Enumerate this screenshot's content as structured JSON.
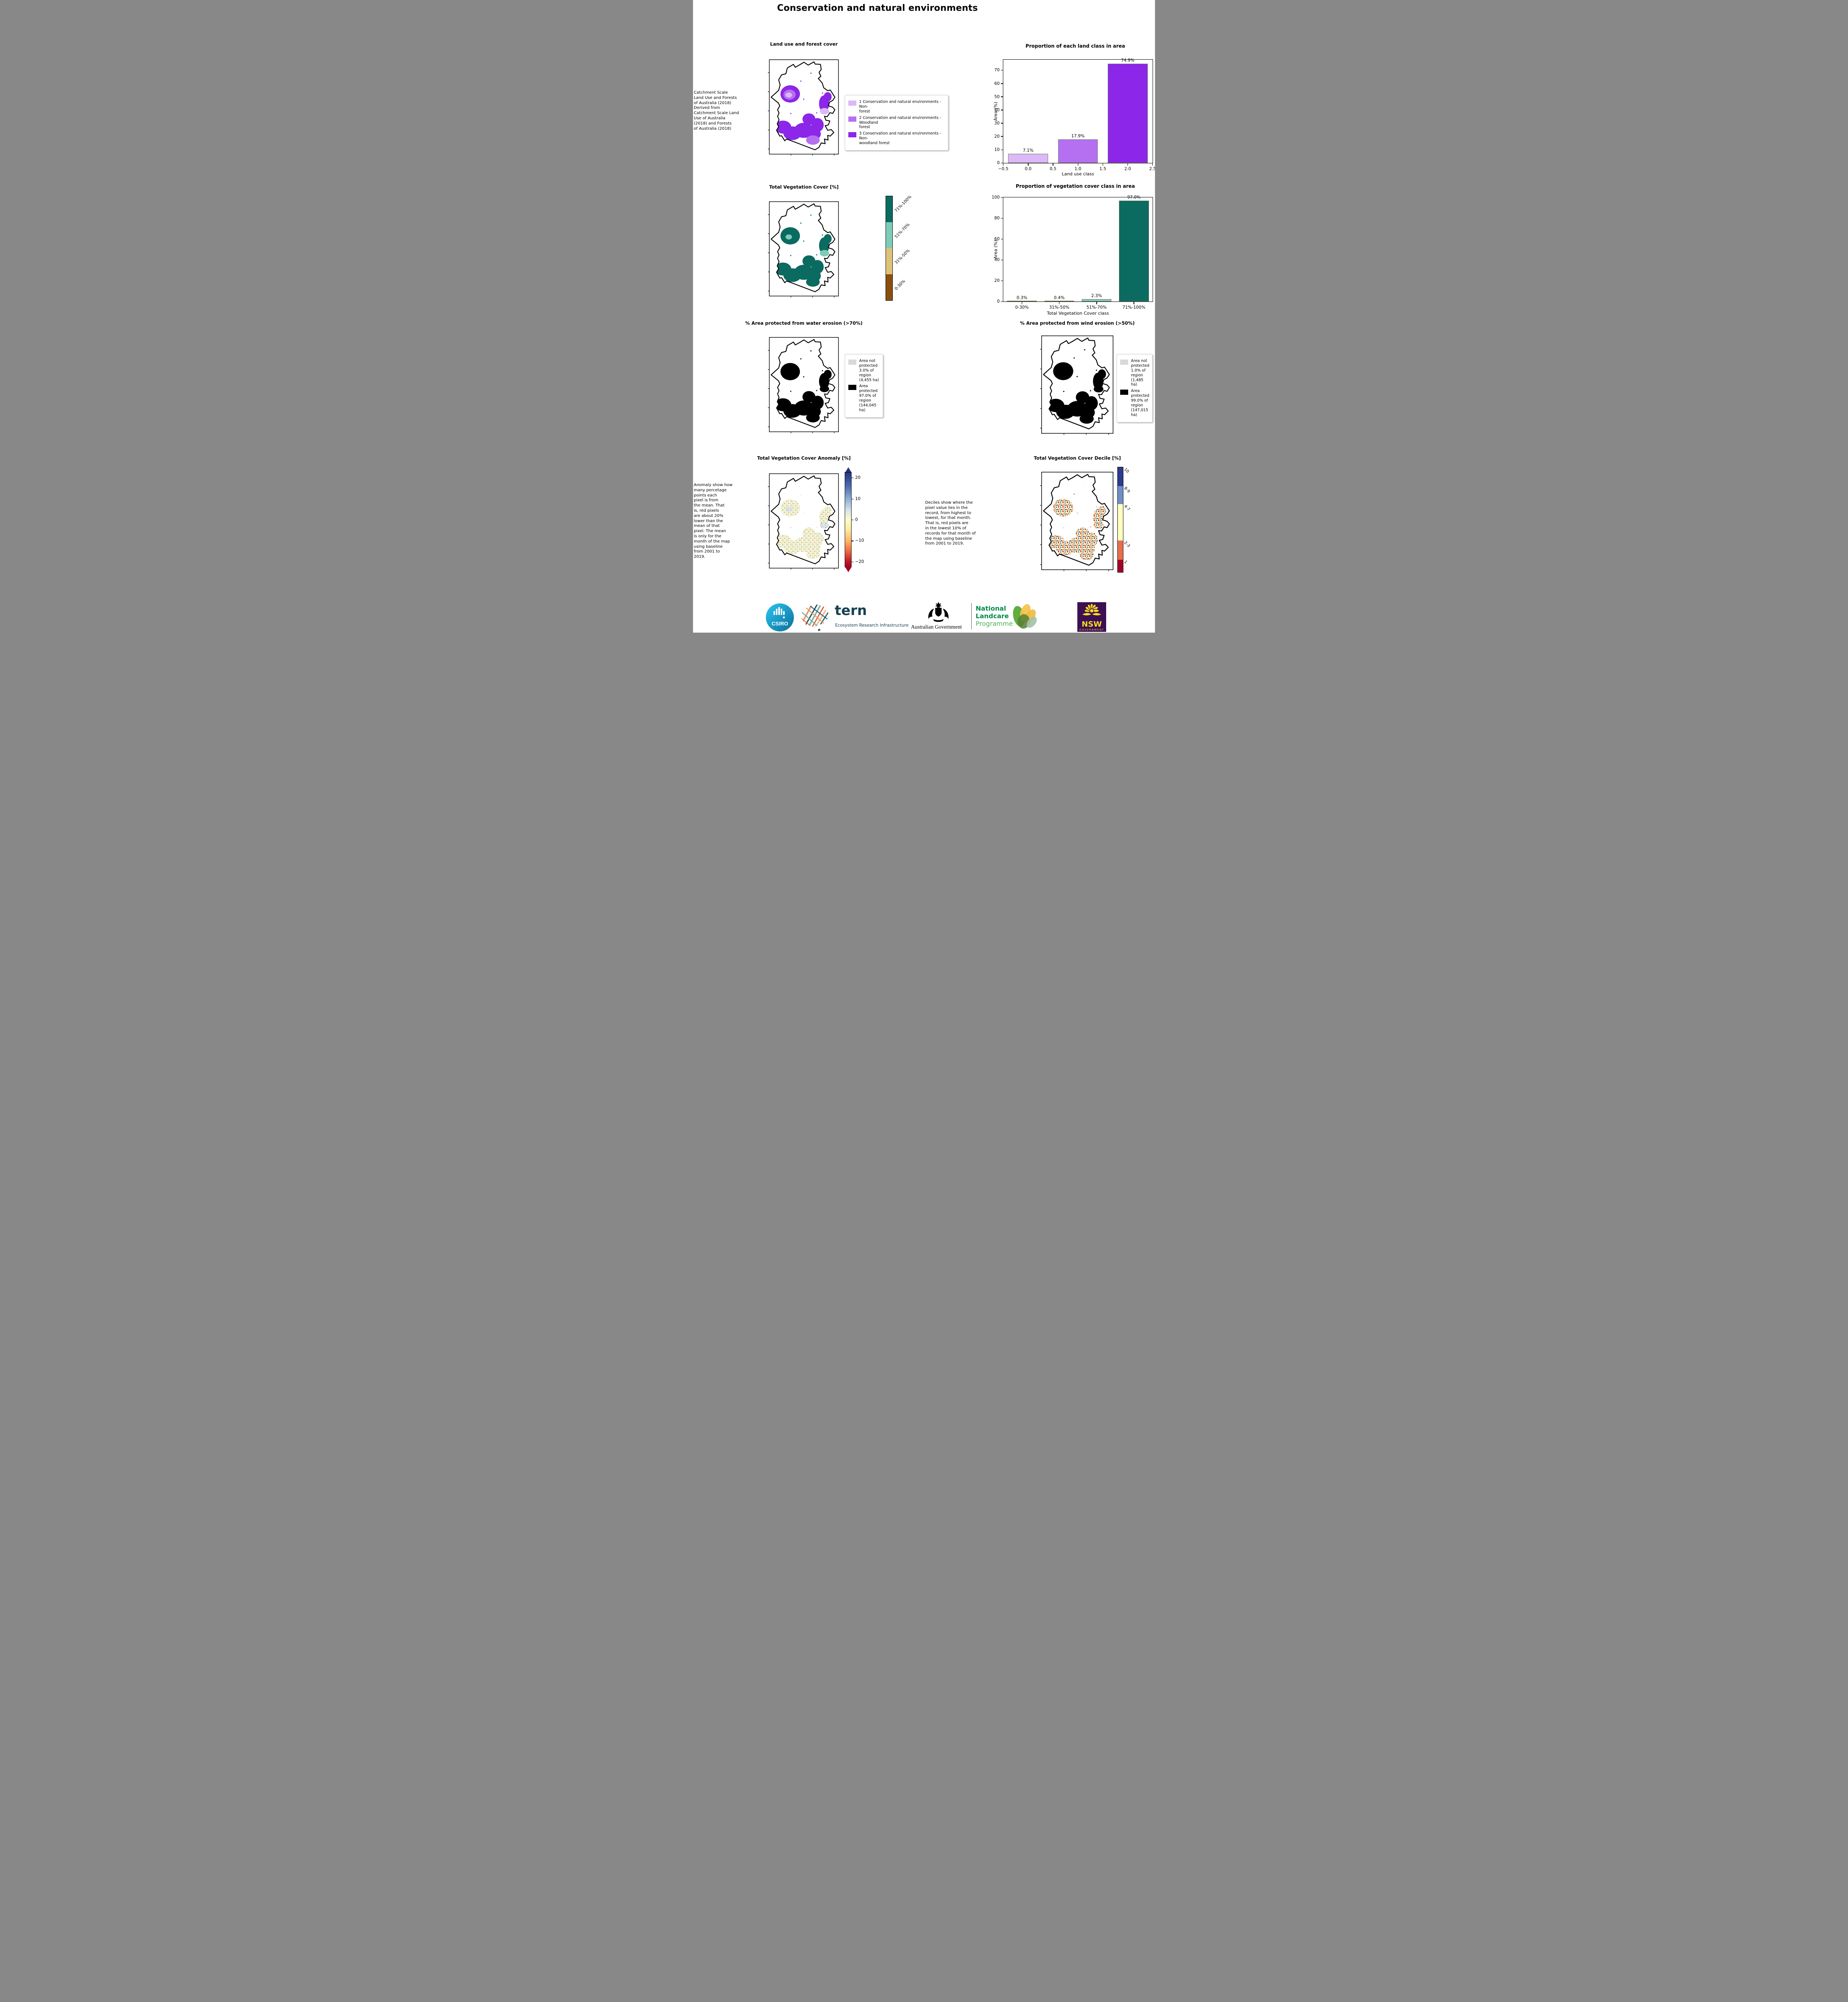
{
  "page": {
    "title": "Conservation and natural environments"
  },
  "maps": {
    "landuse": {
      "title": "Land use and forest cover",
      "fills": {
        "blob-a": "#8c26e8",
        "blob-b": "#b570f2",
        "blob-c": "#dcb8f7"
      }
    },
    "vegcover": {
      "title": "Total Vegetation Cover [%]",
      "fills": {
        "blob-a": "#0b6b60",
        "blob-b": "#0b6b60",
        "blob-c": "#7ecbb8"
      }
    },
    "water": {
      "title": "% Area protected from water erosion (>70%)",
      "fills": {
        "blob-a": "#000000",
        "blob-b": "#000000",
        "blob-c": "#000000"
      }
    },
    "wind": {
      "title": "% Area protected from wind erosion (>50%)",
      "fills": {
        "blob-a": "#000000",
        "blob-b": "#000000",
        "blob-c": "#000000"
      }
    },
    "anomaly": {
      "title": "Total Vegetation Cover Anomaly [%]",
      "fills": {
        "blob-a": "url(#patAnom)",
        "blob-b": "url(#patAnom)",
        "blob-c": "url(#patAnomBlue)"
      }
    },
    "decile": {
      "title": "Total Vegetation Cover Decile [%]",
      "fills": {
        "blob-a": "url(#patDecile)",
        "blob-b": "url(#patDecile)",
        "blob-c": "url(#patDecile)"
      }
    }
  },
  "captions": {
    "landuse": " Catchment Scale\nLand Use and Forests\nof Australia (2018)\nDerived from\nCatchment Scale Land\nUse of Australia\n(2018) and Forests\nof Australia (2018)",
    "anomaly": "Anomaly show how\nmany percetage\npoints each\npixel is from\nthe mean. That\nis, red pixels\nare about 20%\nlower than the\nmean of that\npixel. The mean\nis only for the\nmonth of the map\nusing baseline\nfrom 2001 to\n2019.",
    "decile": "Deciles show where the\npixel value lies in the\nrecord, from highest to\nlowest, for that month.\nThat is, red pixels are\nin the lowest 10% of\nrecords for that month of\nthe map using baseline\nfrom 2001 to 2019."
  },
  "legends": {
    "landuse": {
      "items": [
        {
          "label": "1 Conservation and natural environments - Non-\nforest",
          "color": "#dcb8f7"
        },
        {
          "label": "2 Conservation and natural environments - Woodland\nforest",
          "color": "#b570f2"
        },
        {
          "label": "3 Conservation and natural environments - Non-\nwoodland forest",
          "color": "#8c26e8"
        }
      ]
    },
    "water": {
      "items": [
        {
          "label": "Area not protected 3.0% of region (4,455 ha)",
          "color": "#d9d9d9"
        },
        {
          "label": "Area protected 97.0% of region (144,045 ha)",
          "color": "#000000"
        }
      ]
    },
    "wind": {
      "items": [
        {
          "label": "Area not protected 1.0% of region (1,485 ha)",
          "color": "#d9d9d9"
        },
        {
          "label": "Area protected 99.0% of region (147,015 ha)",
          "color": "#000000"
        }
      ]
    }
  },
  "colorbars": {
    "vegcover": {
      "rotation": "ccw",
      "segments": [
        {
          "label": "71%-100%",
          "color": "#0b6b60",
          "height": 25
        },
        {
          "label": "51%-70%",
          "color": "#7ecbb8",
          "height": 25
        },
        {
          "label": "31%-50%",
          "color": "#dfc279",
          "height": 25
        },
        {
          "label": "0-30%",
          "color": "#8a4f10",
          "height": 25
        }
      ]
    },
    "decile": {
      "rotation": "cw",
      "segments": [
        {
          "label": "10",
          "color": "#2d3a8d",
          "height": 18
        },
        {
          "label": "8-9",
          "color": "#6f8ec9",
          "height": 17
        },
        {
          "label": "4-7",
          "color": "#ffffbf",
          "height": 35
        },
        {
          "label": "2-3",
          "color": "#ea6e4a",
          "height": 18
        },
        {
          "label": "1",
          "color": "#a50026",
          "height": 12
        }
      ]
    },
    "anomaly": {
      "ticks": [
        {
          "label": "20",
          "pos": 10
        },
        {
          "label": "10",
          "pos": 30
        },
        {
          "label": "0",
          "pos": 50
        },
        {
          "label": "−10",
          "pos": 70
        },
        {
          "label": "−20",
          "pos": 90
        }
      ]
    }
  },
  "chart_data": [
    {
      "type": "bar",
      "title": "Proportion of each land class in area",
      "xlabel": "Land use class",
      "ylabel": "Area (%)",
      "x": [
        0,
        1,
        2
      ],
      "values": [
        7.1,
        17.9,
        74.9
      ],
      "bar_labels": [
        "7.1%",
        "17.9%",
        "74.9%"
      ],
      "colors": [
        "#dcb8f7",
        "#b570f2",
        "#8c26e8"
      ],
      "bar_width": 0.8,
      "xlim": [
        -0.5,
        2.5
      ],
      "ylim": [
        0,
        78
      ],
      "yticks": [
        0,
        10,
        20,
        30,
        40,
        50,
        60,
        70
      ],
      "xticks": [
        -0.5,
        0.0,
        0.5,
        1.0,
        1.5,
        2.0,
        2.5
      ],
      "xticklabels": [
        "−0.5",
        "0.0",
        "0.5",
        "1.0",
        "1.5",
        "2.0",
        "2.5"
      ]
    },
    {
      "type": "bar",
      "title": "Proportion of vegetation cover class in area",
      "xlabel": "Total Vegetation Cover class",
      "ylabel": "Area (%)",
      "categories": [
        "0-30%",
        "31%-50%",
        "51%-70%",
        "71%-100%"
      ],
      "values": [
        0.3,
        0.4,
        2.3,
        97.0
      ],
      "bar_labels": [
        "0.3%",
        "0.4%",
        "2.3%",
        "97.0%"
      ],
      "colors": [
        "#8a4f10",
        "#dfc279",
        "#7ecbb8",
        "#0b6b60"
      ],
      "bar_width": 0.8,
      "ylim": [
        0,
        100
      ],
      "yticks": [
        0,
        20,
        40,
        60,
        80,
        100
      ]
    }
  ],
  "logos": {
    "csiro": {
      "label": "CSIRO",
      "color": "#0e9dc8"
    },
    "tern": {
      "name": "tern",
      "subtitle": "Ecosystem Research Infrastructure",
      "color": "#17404f"
    },
    "ausgov": {
      "label": "Australian Government"
    },
    "landcare": {
      "line1": "National",
      "line2": "Landcare",
      "line3": "Programme",
      "color_dark": "#00894b",
      "color_light": "#4fae4f"
    },
    "nsw": {
      "title": "NSW",
      "subtitle": "GOVERNMENT",
      "bg": "#3c1053",
      "accent": "#f9df1e"
    }
  }
}
